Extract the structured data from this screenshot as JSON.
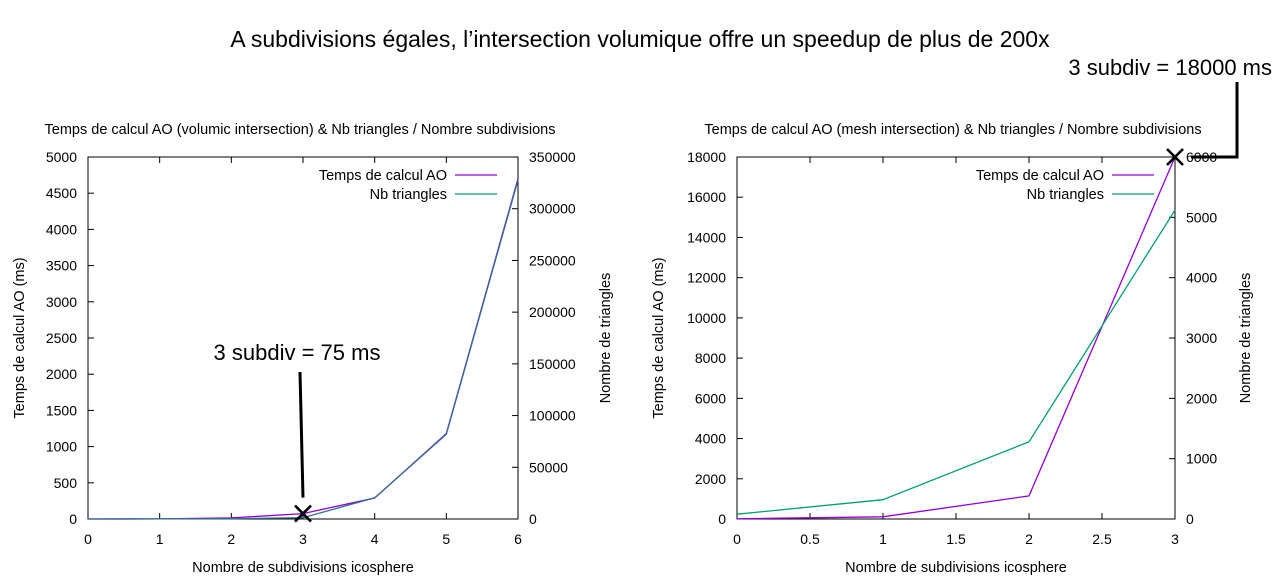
{
  "headline": "A subdivisions égales, l’intersection volumique offre un speedup de plus de 200x",
  "colors": {
    "series_time": "#9400d3",
    "series_triangles": "#009e73",
    "series_overlap": "#2f6f8f",
    "axis": "#000000",
    "marker": "#000000"
  },
  "chart_data": [
    {
      "type": "line",
      "title": "Temps de calcul AO (volumic intersection) & Nb triangles / Nombre subdivisions",
      "xlabel": "Nombre de subdivisions icosphere",
      "ylabel": "Temps de calcul AO (ms)",
      "y2label": "Nombre de triangles",
      "xlim": [
        0,
        6
      ],
      "ylim": [
        0,
        5000
      ],
      "y2lim": [
        0,
        350000
      ],
      "x_ticks": [
        0,
        1,
        2,
        3,
        4,
        5,
        6
      ],
      "y_ticks": [
        0,
        500,
        1000,
        1500,
        2000,
        2500,
        3000,
        3500,
        4000,
        4500,
        5000
      ],
      "y2_ticks": [
        0,
        50000,
        100000,
        150000,
        200000,
        250000,
        300000,
        350000
      ],
      "grid": false,
      "legend_position": "top-right",
      "series": [
        {
          "name": "Temps de calcul AO",
          "axis": "y",
          "x": [
            0,
            1,
            2,
            3,
            4,
            5,
            6
          ],
          "values": [
            0,
            2,
            15,
            75,
            290,
            1180,
            4700
          ]
        },
        {
          "name": "Nb triangles",
          "axis": "y2",
          "x": [
            0,
            1,
            2,
            3,
            4,
            5,
            6
          ],
          "values": [
            20,
            80,
            320,
            1280,
            20480,
            81920,
            327680
          ]
        }
      ],
      "annotation": {
        "text": "3 subdiv = 75 ms",
        "x": 3,
        "y": 75
      }
    },
    {
      "type": "line",
      "title": "Temps de calcul AO (mesh intersection) & Nb triangles / Nombre subdivisions",
      "xlabel": "Nombre de subdivisions icosphere",
      "ylabel": "Temps de calcul AO (ms)",
      "y2label": "Nombre de triangles",
      "xlim": [
        0,
        3
      ],
      "ylim": [
        0,
        18000
      ],
      "y2lim": [
        0,
        6000
      ],
      "x_ticks": [
        0,
        0.5,
        1,
        1.5,
        2,
        2.5,
        3
      ],
      "y_ticks": [
        0,
        2000,
        4000,
        6000,
        8000,
        10000,
        12000,
        14000,
        16000,
        18000
      ],
      "y2_ticks": [
        0,
        1000,
        2000,
        3000,
        4000,
        5000,
        6000
      ],
      "grid": false,
      "legend_position": "top-right",
      "series": [
        {
          "name": "Temps de calcul AO",
          "axis": "y",
          "x": [
            0,
            1,
            2,
            3
          ],
          "values": [
            10,
            110,
            1150,
            18000
          ]
        },
        {
          "name": "Nb triangles",
          "axis": "y2",
          "x": [
            0,
            1,
            2,
            3
          ],
          "values": [
            80,
            320,
            1280,
            5120
          ]
        }
      ],
      "annotation": {
        "text": "3 subdiv = 18000 ms",
        "x": 3,
        "y": 18000
      }
    }
  ]
}
